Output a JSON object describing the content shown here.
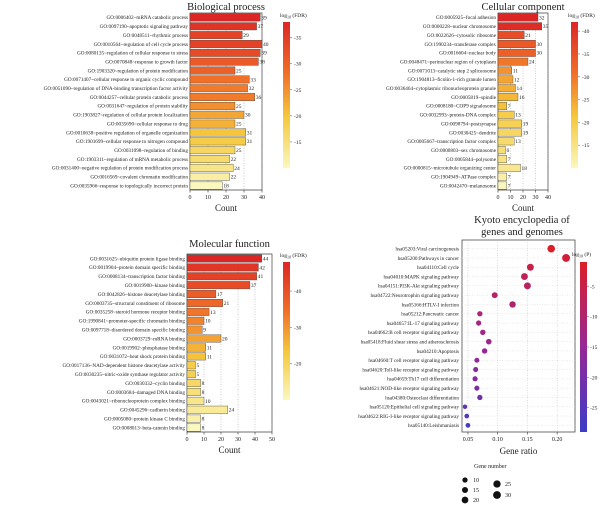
{
  "chart_data": [
    {
      "type": "bar",
      "title": "Biological process",
      "xlabel": "Count",
      "xlim": [
        0,
        40
      ],
      "xticks": [
        0,
        10,
        20,
        30,
        40
      ],
      "colorbar_label": "log10(FDR)",
      "colorbar_range": [
        -38,
        -10
      ],
      "colorbar_ticks": [
        -35,
        -30,
        -25,
        -20,
        -15
      ],
      "terms": [
        "GO:0006402~mRNA catabolic process",
        "GO:0097190~apoptotic signaling pathway",
        "GO:0048511~rhythmic process",
        "GO:0010564~regulation of cell cycle process",
        "GO:0080135~regulation of cellular response to stress",
        "GO:0070848~response to growth factor",
        "GO:1903320~regulation of protein modification",
        "GO:0071407~cellular response to organic cyclic compound",
        "GO:0051090~regulation of DNA-binding transcription factor activity",
        "GO:0044257~cellular protein catabolic process",
        "GO:0031647~regulation of protein stability",
        "GO:1903827~regulation of cellular protein localization",
        "GO:0035690~cellular response to drug",
        "GO:0010638~positive regulation of organelle organization",
        "GO:1901699~cellular response to nitrogen compound",
        "GO:0031098~regulation of binding",
        "GO:1903311~regulation of mRNA metabolic process",
        "GO:0031400~negative regulation of protein modification process",
        "GO:0016569~covalent chromatin modification",
        "GO:0035966~response to topologically incorrect protein"
      ],
      "values": [
        39,
        37,
        29,
        40,
        39,
        38,
        25,
        33,
        32,
        36,
        25,
        30,
        25,
        31,
        31,
        25,
        22,
        24,
        22,
        18
      ],
      "log10_fdr": [
        -38,
        -36,
        -34,
        -34,
        -33,
        -31,
        -30,
        -28,
        -27,
        -27,
        -25,
        -23,
        -22,
        -20,
        -19,
        -17,
        -16,
        -14,
        -12,
        -10
      ]
    },
    {
      "type": "bar",
      "title": "Cellular component",
      "xlabel": "Count",
      "xlim": [
        0,
        40
      ],
      "xticks": [
        0,
        10,
        20,
        30,
        40
      ],
      "colorbar_label": "log10(FDR)",
      "colorbar_range": [
        -42,
        -10
      ],
      "colorbar_ticks": [
        -40,
        -35,
        -30,
        -25,
        -20,
        -15
      ],
      "terms": [
        "GO:0005925~focal adhesion",
        "GO:0000228~nuclear chromosome",
        "GO:0022626~cytosolic ribosome",
        "GO:1990234~transferase complex",
        "GO:0016604~nuclear body",
        "GO:0048471~perinuclear region of cytoplasm",
        "GO:0071013~catalytic step 2 spliceosome",
        "GO:1904813~ficolin-1-rich granule lumen",
        "GO:0036464~cytoplasmic ribonucleoprotein granule",
        "GO:0005819~spindle",
        "GO:0008180~COP9 signalosome",
        "GO:0032993~protein-DNA complex",
        "GO:0098794~postsynapse",
        "GO:0030425~dendrite",
        "GO:0005667~transcription factor complex",
        "GO:0000803~sex chromosome",
        "GO:0005844~polysome",
        "GO:0000815~microtubule organizing center",
        "GO:1904949~ATPase complex",
        "GO:0042470~melanosome"
      ],
      "values": [
        32,
        35,
        21,
        30,
        30,
        24,
        11,
        12,
        14,
        16,
        7,
        13,
        19,
        19,
        13,
        6,
        7,
        18,
        7,
        7
      ],
      "log10_fdr": [
        -42,
        -41,
        -36,
        -34,
        -33,
        -30,
        -27,
        -25,
        -24,
        -23,
        -22,
        -20,
        -19,
        -18,
        -17,
        -16,
        -15,
        -14,
        -12,
        -10
      ]
    },
    {
      "type": "bar",
      "title": "Molecular function",
      "xlabel": "Count",
      "xlim": [
        0,
        50
      ],
      "xticks": [
        0,
        10,
        20,
        30,
        40,
        50
      ],
      "colorbar_label": "log10(FDR)",
      "colorbar_range": [
        -48,
        -10
      ],
      "colorbar_ticks": [
        -40,
        -30,
        -20
      ],
      "terms": [
        "GO:0031625~ubiquitin protein ligase binding",
        "GO:0019904~protein domain specific binding",
        "GO:0008134~transcription factor binding",
        "GO:0019900~kinase binding",
        "GO:0042826~histone deacetylase binding",
        "GO:0003735~structural constituent of ribosome",
        "GO:0035258~steroid hormone receptor binding",
        "GO:1990841~promoter-specific chromatin binding",
        "GO:0097718~disordered domain specific binding",
        "GO:0003729~mRNA binding",
        "GO:0019902~phosphatase binding",
        "GO:0031072~heat shock protein binding",
        "GO:0017136~NAD-dependent histone deacetylase activity",
        "GO:0030235~nitric-oxide synthase regulator activity",
        "GO:0030332~cyclin binding",
        "GO:0003684~damaged DNA binding",
        "GO:0043021~ribonucleoprotein complex binding",
        "GO:0045296~cadherin binding",
        "GO:0005080~protein kinase C binding",
        "GO:0008013~beta-catenin binding"
      ],
      "values": [
        44,
        42,
        41,
        37,
        17,
        21,
        13,
        10,
        9,
        20,
        11,
        11,
        5,
        5,
        8,
        8,
        10,
        24,
        8,
        8
      ],
      "log10_fdr": [
        -48,
        -45,
        -43,
        -41,
        -38,
        -36,
        -34,
        -32,
        -30,
        -28,
        -26,
        -24,
        -22,
        -21,
        -19,
        -17,
        -15,
        -14,
        -12,
        -10
      ]
    },
    {
      "type": "scatter",
      "title": "Kyoto encyclopedia of genes and genomes",
      "xlabel": "Gene ratio",
      "xlim": [
        0.04,
        0.23
      ],
      "xticks": [
        0.05,
        0.1,
        0.15,
        0.2
      ],
      "colorbar_label": "log10(P)",
      "colorbar_range": [
        -29,
        -1
      ],
      "colorbar_ticks": [
        -5,
        -10,
        -15,
        -20,
        -25
      ],
      "size_legend_title": "Gene number",
      "size_legend": [
        10,
        15,
        20,
        25,
        30
      ],
      "pathways": [
        "hsa05203:Viral carcinogenesis",
        "hsa05200:Pathways in cancer",
        "hsa04110:Cell cycle",
        "hsa04010:MAPK signaling pathway",
        "hsa04151:PI3K-Akt signaling pathway",
        "hsa04722:Neurotrophin signaling pathway",
        "hsa05166:HTLV-I infection",
        "hsa05212:Pancreatic cancer",
        "hsa04657:IL-17 signaling pathway",
        "hsa04662:B cell receptor signaling pathway",
        "hsa05418:Fluid shear stress and atherosclerosis",
        "hsa04210:Apoptosis",
        "hsa04660:T cell receptor signaling pathway",
        "hsa04620:Toll-like receptor signaling pathway",
        "hsa04659:Th17 cell differentiation",
        "hsa04621:NOD-like receptor signaling pathway",
        "hsa04380:Osteoclast differentiation",
        "hsa05120:Epithelial cell signaling pathway",
        "hsa04622:RIG-I-like receptor signaling pathway",
        "hsa05140:Leishmaniasis"
      ],
      "gene_ratio": [
        0.19,
        0.215,
        0.155,
        0.145,
        0.15,
        0.095,
        0.125,
        0.07,
        0.068,
        0.075,
        0.085,
        0.078,
        0.065,
        0.063,
        0.062,
        0.065,
        0.07,
        0.045,
        0.048,
        0.05
      ],
      "gene_number": [
        28,
        31,
        22,
        21,
        22,
        14,
        18,
        10,
        10,
        11,
        12,
        11,
        9,
        9,
        9,
        9,
        10,
        6,
        7,
        7
      ],
      "log10_p": [
        -29,
        -27,
        -25,
        -23,
        -22,
        -21,
        -20,
        -19,
        -18,
        -17,
        -16,
        -15,
        -14,
        -13,
        -12,
        -11,
        -9,
        -7,
        -5,
        -3
      ]
    }
  ]
}
